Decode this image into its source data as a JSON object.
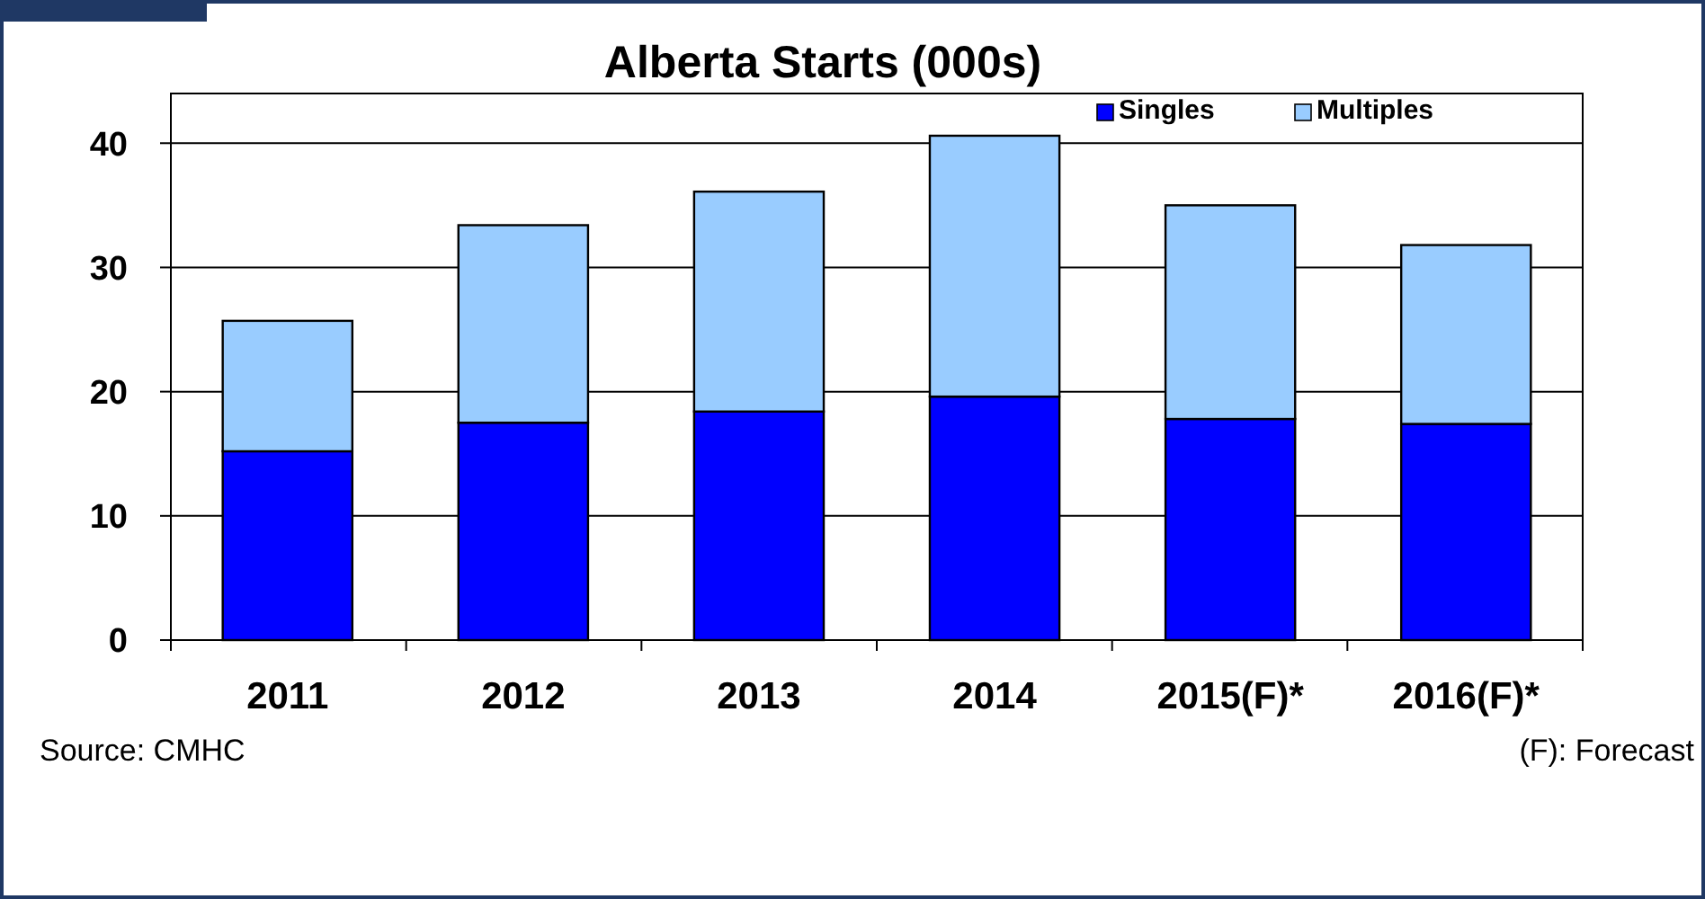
{
  "chart_data": {
    "type": "bar",
    "title": "Alberta Starts (000s)",
    "stacked": true,
    "categories": [
      "2011",
      "2012",
      "2013",
      "2014",
      "2015(F)*",
      "2016(F)*"
    ],
    "series": [
      {
        "name": "Singles",
        "color": "#0000ff",
        "values": [
          15.2,
          17.5,
          18.4,
          19.6,
          17.8,
          17.4
        ]
      },
      {
        "name": "Multiples",
        "color": "#99ccff",
        "values": [
          10.5,
          15.9,
          17.7,
          21.0,
          17.2,
          14.4
        ]
      }
    ],
    "ylim": [
      0,
      44
    ],
    "yticks": [
      0,
      10,
      20,
      30,
      40
    ],
    "grid": "y",
    "legend": "top right",
    "annotations": [
      "Source: CMHC",
      "(F): Forecast"
    ]
  }
}
